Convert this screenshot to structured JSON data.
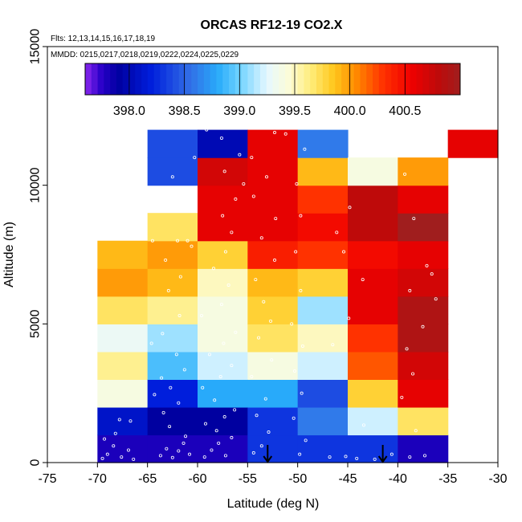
{
  "chart_data": {
    "type": "heatmap",
    "title": "ORCAS RF12-19 CO2.X",
    "subtitle_flights": "Flts: 12,13,14,15,16,17,18,19",
    "subtitle_dates": "MMDD: 0215,0217,0218,0219,0222,0224,0225,0229",
    "xlabel": "Latitude (deg N)",
    "ylabel": "Altitude (m)",
    "xlim": [
      -75,
      -30
    ],
    "ylim": [
      0,
      15000
    ],
    "x_ticks": [
      -75,
      -70,
      -65,
      -60,
      -55,
      -50,
      -45,
      -40,
      -35,
      -30
    ],
    "y_ticks": [
      0,
      5000,
      10000,
      15000
    ],
    "colorbar": {
      "range": [
        397.6,
        401.0
      ],
      "ticks": [
        398.0,
        398.5,
        399.0,
        399.5,
        400.0,
        400.5
      ],
      "tick_labels": [
        "398.0",
        "398.5",
        "399.0",
        "399.5",
        "400.0",
        "400.5"
      ]
    },
    "grid": false,
    "bin_width_deg": 5,
    "bin_height_m": 1000,
    "column_starts": [
      -70,
      -65,
      -60,
      -55,
      -50,
      -45,
      -40,
      -35
    ],
    "cells": [
      {
        "lat": -70,
        "values": [
          397.8,
          398.1,
          399.4,
          399.6,
          399.3,
          399.7,
          400.0,
          399.9
        ]
      },
      {
        "lat": -65,
        "values": [
          397.8,
          397.9,
          398.2,
          398.9,
          399.1,
          399.6,
          399.9,
          400.0,
          399.7,
          null,
          398.4,
          398.4
        ]
      },
      {
        "lat": -60,
        "values": [
          397.8,
          397.9,
          398.8,
          399.2,
          399.4,
          399.4,
          399.5,
          399.8,
          400.6,
          400.6,
          400.7,
          398.0
        ]
      },
      {
        "lat": -55,
        "values": [
          398.3,
          398.3,
          398.8,
          399.4,
          399.7,
          399.8,
          399.9,
          400.4,
          400.6,
          400.6,
          400.6,
          400.6
        ]
      },
      {
        "lat": -50,
        "values": [
          398.3,
          398.6,
          398.4,
          399.2,
          399.5,
          399.1,
          399.8,
          400.3,
          400.5,
          400.3,
          399.9,
          398.6
        ]
      },
      {
        "lat": -45,
        "values": [
          398.3,
          399.2,
          399.8,
          400.2,
          400.3,
          400.6,
          400.6,
          400.5,
          400.8,
          400.8,
          399.4
        ]
      },
      {
        "lat": -40,
        "values": [
          397.8,
          399.7,
          400.6,
          400.7,
          400.9,
          400.9,
          400.7,
          400.6,
          401.0,
          400.6,
          400.0
        ]
      },
      {
        "lat": -35,
        "values": [
          null,
          null,
          null,
          null,
          null,
          null,
          null,
          null,
          null,
          null,
          null,
          400.6
        ]
      }
    ],
    "arrows_lat": [
      -53,
      -41.5
    ],
    "sample_points": [
      [
        -69.5,
        150
      ],
      [
        -69,
        300
      ],
      [
        -68.4,
        600
      ],
      [
        -67.6,
        200
      ],
      [
        -66.9,
        450
      ],
      [
        -66.4,
        120
      ],
      [
        -67.8,
        1550
      ],
      [
        -66.7,
        1500
      ],
      [
        -69.3,
        850
      ],
      [
        -68.2,
        1050
      ],
      [
        -63.7,
        250
      ],
      [
        -63.1,
        500
      ],
      [
        -62.5,
        180
      ],
      [
        -61.9,
        420
      ],
      [
        -61.4,
        700
      ],
      [
        -60.8,
        300
      ],
      [
        -61.2,
        950
      ],
      [
        -62.8,
        1300
      ],
      [
        -63.4,
        1800
      ],
      [
        -61.9,
        2150
      ],
      [
        -64.3,
        2450
      ],
      [
        -62.7,
        2700
      ],
      [
        -63.6,
        3050
      ],
      [
        -61.3,
        3350
      ],
      [
        -62.1,
        3900
      ],
      [
        -64.6,
        4300
      ],
      [
        -63.5,
        4650
      ],
      [
        -61.8,
        5300
      ],
      [
        -62.9,
        6200
      ],
      [
        -61.7,
        6700
      ],
      [
        -63.2,
        7300
      ],
      [
        -60.6,
        7800
      ],
      [
        -64.5,
        8000
      ],
      [
        -62,
        8000
      ],
      [
        -61,
        8000
      ],
      [
        -60.3,
        11000
      ],
      [
        -62.5,
        10300
      ],
      [
        -61.4,
        9650
      ],
      [
        -59.3,
        200
      ],
      [
        -58.6,
        450
      ],
      [
        -57.9,
        700
      ],
      [
        -57.2,
        250
      ],
      [
        -56.6,
        900
      ],
      [
        -58.1,
        1150
      ],
      [
        -59.2,
        1400
      ],
      [
        -57.3,
        1650
      ],
      [
        -56.3,
        1900
      ],
      [
        -58.3,
        2250
      ],
      [
        -59.5,
        2700
      ],
      [
        -57.7,
        3100
      ],
      [
        -56.6,
        3500
      ],
      [
        -58.8,
        3900
      ],
      [
        -57.4,
        4300
      ],
      [
        -56.2,
        4700
      ],
      [
        -59.6,
        5300
      ],
      [
        -57.6,
        5700
      ],
      [
        -56.9,
        6400
      ],
      [
        -58.4,
        7000
      ],
      [
        -57.2,
        7600
      ],
      [
        -56.6,
        8300
      ],
      [
        -57.5,
        8900
      ],
      [
        -56.2,
        9500
      ],
      [
        -55.4,
        10050
      ],
      [
        -57.3,
        10500
      ],
      [
        -55.8,
        11100
      ],
      [
        -57.6,
        11700
      ],
      [
        -59.1,
        12000
      ],
      [
        -54.4,
        350
      ],
      [
        -53.6,
        600
      ],
      [
        -52.9,
        1100
      ],
      [
        -54.1,
        1700
      ],
      [
        -53.2,
        2300
      ],
      [
        -54.6,
        3100
      ],
      [
        -52.6,
        3700
      ],
      [
        -53.9,
        4500
      ],
      [
        -52.7,
        5100
      ],
      [
        -53.4,
        5800
      ],
      [
        -54.2,
        6600
      ],
      [
        -52.3,
        7300
      ],
      [
        -53.6,
        8100
      ],
      [
        -52.2,
        8800
      ],
      [
        -54.4,
        9600
      ],
      [
        -53.1,
        10300
      ],
      [
        -54.6,
        11000
      ],
      [
        -51.2,
        11850
      ],
      [
        -52.3,
        11900
      ],
      [
        -49.8,
        300
      ],
      [
        -49.2,
        800
      ],
      [
        -50.4,
        1600
      ],
      [
        -49.6,
        2500
      ],
      [
        -50.3,
        3300
      ],
      [
        -49.5,
        4200
      ],
      [
        -50.6,
        5000
      ],
      [
        -49.7,
        6200
      ],
      [
        -50.2,
        7600
      ],
      [
        -49.7,
        8900
      ],
      [
        -50.1,
        10050
      ],
      [
        -49.3,
        11300
      ],
      [
        -46.8,
        200
      ],
      [
        -45.2,
        220
      ],
      [
        -44.1,
        150
      ],
      [
        -42.3,
        120
      ],
      [
        -43.4,
        1350
      ],
      [
        -46.5,
        4250
      ],
      [
        -44.9,
        5200
      ],
      [
        -43.5,
        6600
      ],
      [
        -45.4,
        7600
      ],
      [
        -46.1,
        8300
      ],
      [
        -44.8,
        9200
      ],
      [
        -40.6,
        300
      ],
      [
        -38.8,
        200
      ],
      [
        -37.3,
        250
      ],
      [
        -38.2,
        1150
      ],
      [
        -39.6,
        2350
      ],
      [
        -38.5,
        3200
      ],
      [
        -39.1,
        4100
      ],
      [
        -37.5,
        4900
      ],
      [
        -38.8,
        6200
      ],
      [
        -37.1,
        7100
      ],
      [
        -38.4,
        8800
      ],
      [
        -39.3,
        10400
      ],
      [
        -37.8,
        11500
      ],
      [
        -36.6,
        6800
      ],
      [
        -36.2,
        5900
      ]
    ]
  }
}
